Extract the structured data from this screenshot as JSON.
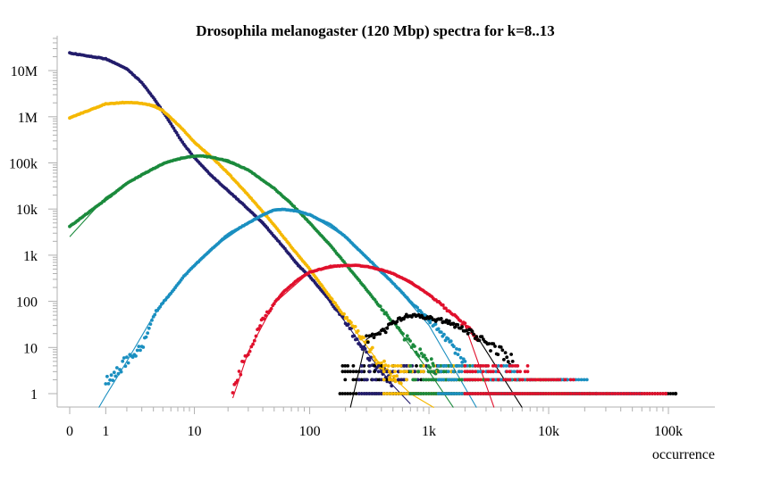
{
  "chart_data": {
    "type": "scatter",
    "title": "Drosophila melanogaster (120 Mbp) spectra for k=8..13",
    "xlabel": "occurrence",
    "ylabel": "",
    "x_scale": "log1p",
    "y_scale": "log1p",
    "xlim": [
      0,
      120000
    ],
    "ylim": [
      0.5,
      60000000
    ],
    "x_ticks": [
      {
        "value": 0,
        "label": "0"
      },
      {
        "value": 1,
        "label": "1"
      },
      {
        "value": 10,
        "label": "10"
      },
      {
        "value": 100,
        "label": "100"
      },
      {
        "value": 1000,
        "label": "1k"
      },
      {
        "value": 10000,
        "label": "10k"
      },
      {
        "value": 100000,
        "label": "100k"
      }
    ],
    "y_ticks": [
      {
        "value": 1,
        "label": "1"
      },
      {
        "value": 10,
        "label": "10"
      },
      {
        "value": 100,
        "label": "100"
      },
      {
        "value": 1000,
        "label": "1k"
      },
      {
        "value": 10000,
        "label": "10k"
      },
      {
        "value": 100000,
        "label": "100k"
      },
      {
        "value": 1000000,
        "label": "1M"
      },
      {
        "value": 10000000,
        "label": "10M"
      }
    ],
    "grid": false,
    "series": [
      {
        "color": "#221c6b",
        "points": [
          [
            0,
            24000000
          ],
          [
            1,
            18000000
          ],
          [
            2,
            11000000
          ],
          [
            3,
            5500000
          ],
          [
            4,
            2600000
          ],
          [
            5,
            1300000
          ],
          [
            6,
            700000
          ],
          [
            7,
            400000
          ],
          [
            8,
            250000
          ],
          [
            10,
            130000
          ],
          [
            14,
            55000
          ],
          [
            20,
            25000
          ],
          [
            30,
            10000
          ],
          [
            40,
            5000
          ],
          [
            60,
            1500
          ],
          [
            80,
            600
          ],
          [
            100,
            350
          ],
          [
            150,
            100
          ],
          [
            200,
            35
          ],
          [
            250,
            15
          ],
          [
            300,
            8
          ],
          [
            400,
            3
          ],
          [
            500,
            2
          ]
        ],
        "fit": [
          [
            0,
            24000000
          ],
          [
            1,
            18000000
          ],
          [
            2,
            11000000
          ],
          [
            3,
            5500000
          ],
          [
            5,
            1300000
          ],
          [
            8,
            250000
          ],
          [
            14,
            55000
          ],
          [
            30,
            10000
          ],
          [
            60,
            1500
          ],
          [
            100,
            350
          ],
          [
            200,
            35
          ],
          [
            300,
            8
          ],
          [
            500,
            1.5
          ],
          [
            700,
            0.6
          ]
        ]
      },
      {
        "color": "#f5b800",
        "points": [
          [
            0,
            950000
          ],
          [
            1,
            1900000
          ],
          [
            2,
            2050000
          ],
          [
            3,
            1950000
          ],
          [
            4,
            1750000
          ],
          [
            5,
            1350000
          ],
          [
            6,
            950000
          ],
          [
            8,
            500000
          ],
          [
            10,
            280000
          ],
          [
            15,
            120000
          ],
          [
            20,
            60000
          ],
          [
            30,
            20000
          ],
          [
            50,
            4500
          ],
          [
            70,
            1500
          ],
          [
            100,
            500
          ],
          [
            150,
            120
          ],
          [
            200,
            45
          ],
          [
            300,
            12
          ],
          [
            400,
            4
          ],
          [
            600,
            2
          ]
        ],
        "fit": [
          [
            0,
            950000
          ],
          [
            1,
            1900000
          ],
          [
            2,
            2000000
          ],
          [
            3,
            1950000
          ],
          [
            5,
            1350000
          ],
          [
            8,
            500000
          ],
          [
            12,
            200000
          ],
          [
            20,
            60000
          ],
          [
            50,
            4500
          ],
          [
            100,
            500
          ],
          [
            200,
            45
          ],
          [
            400,
            4
          ],
          [
            700,
            1
          ],
          [
            1100,
            0.5
          ]
        ]
      },
      {
        "color": "#1b8a3c",
        "points": [
          [
            0,
            4200
          ],
          [
            1,
            16000
          ],
          [
            2,
            36000
          ],
          [
            3,
            55000
          ],
          [
            4,
            75000
          ],
          [
            5,
            95000
          ],
          [
            6,
            110000
          ],
          [
            8,
            130000
          ],
          [
            10,
            140000
          ],
          [
            12,
            140000
          ],
          [
            15,
            130000
          ],
          [
            20,
            110000
          ],
          [
            30,
            70000
          ],
          [
            50,
            28000
          ],
          [
            70,
            13000
          ],
          [
            100,
            5000
          ],
          [
            150,
            1600
          ],
          [
            200,
            650
          ],
          [
            300,
            180
          ],
          [
            500,
            35
          ],
          [
            800,
            8
          ],
          [
            1200,
            3
          ]
        ],
        "fit": [
          [
            0,
            2500
          ],
          [
            1,
            18000
          ],
          [
            2,
            35000
          ],
          [
            5,
            95000
          ],
          [
            10,
            140000
          ],
          [
            15,
            130000
          ],
          [
            30,
            70000
          ],
          [
            50,
            28000
          ],
          [
            100,
            5000
          ],
          [
            200,
            650
          ],
          [
            500,
            35
          ],
          [
            1000,
            3
          ],
          [
            1600,
            0.5
          ]
        ]
      },
      {
        "color": "#1a8fc0",
        "points": [
          [
            1,
            2
          ],
          [
            2,
            5
          ],
          [
            3,
            10
          ],
          [
            4,
            50
          ],
          [
            5,
            95
          ],
          [
            6,
            150
          ],
          [
            8,
            350
          ],
          [
            10,
            600
          ],
          [
            15,
            1500
          ],
          [
            20,
            2800
          ],
          [
            30,
            5000
          ],
          [
            40,
            7500
          ],
          [
            50,
            9500
          ],
          [
            60,
            9800
          ],
          [
            80,
            9000
          ],
          [
            100,
            7500
          ],
          [
            150,
            4500
          ],
          [
            200,
            2500
          ],
          [
            300,
            900
          ],
          [
            500,
            250
          ],
          [
            800,
            70
          ],
          [
            1200,
            25
          ],
          [
            2000,
            5
          ]
        ],
        "fit": [
          [
            0.75,
            0.5
          ],
          [
            1,
            0.9
          ],
          [
            2,
            5
          ],
          [
            4,
            48
          ],
          [
            8,
            350
          ],
          [
            15,
            1500
          ],
          [
            30,
            5000
          ],
          [
            50,
            9500
          ],
          [
            70,
            9500
          ],
          [
            100,
            7500
          ],
          [
            200,
            2500
          ],
          [
            500,
            250
          ],
          [
            1000,
            30
          ],
          [
            2500,
            0.5
          ]
        ]
      },
      {
        "color": "#e0102c",
        "points": [
          [
            22,
            1
          ],
          [
            25,
            3
          ],
          [
            30,
            8
          ],
          [
            35,
            20
          ],
          [
            40,
            40
          ],
          [
            50,
            90
          ],
          [
            60,
            160
          ],
          [
            80,
            300
          ],
          [
            100,
            430
          ],
          [
            150,
            570
          ],
          [
            200,
            600
          ],
          [
            250,
            600
          ],
          [
            300,
            570
          ],
          [
            400,
            480
          ],
          [
            500,
            400
          ],
          [
            700,
            260
          ],
          [
            1000,
            140
          ],
          [
            1500,
            60
          ],
          [
            2000,
            30
          ],
          [
            2500,
            15
          ]
        ],
        "fit": [
          [
            22,
            0.8
          ],
          [
            30,
            8
          ],
          [
            50,
            90
          ],
          [
            100,
            430
          ],
          [
            200,
            600
          ],
          [
            300,
            570
          ],
          [
            500,
            400
          ],
          [
            1000,
            140
          ],
          [
            2000,
            30
          ],
          [
            3500,
            0.5
          ]
        ]
      },
      {
        "color": "#000000",
        "points": [
          [
            300,
            15
          ],
          [
            400,
            20
          ],
          [
            500,
            35
          ],
          [
            600,
            45
          ],
          [
            700,
            50
          ],
          [
            800,
            50
          ],
          [
            1000,
            45
          ],
          [
            1300,
            38
          ],
          [
            1600,
            30
          ],
          [
            2000,
            25
          ],
          [
            2500,
            18
          ],
          [
            3000,
            12
          ],
          [
            4000,
            8
          ],
          [
            5000,
            5
          ]
        ],
        "fit": [
          [
            220,
            0.5
          ],
          [
            300,
            15
          ],
          [
            600,
            45
          ],
          [
            800,
            50
          ],
          [
            1300,
            38
          ],
          [
            2500,
            18
          ],
          [
            6000,
            0.5
          ]
        ]
      }
    ],
    "singletons": [
      {
        "color": "#000000",
        "x": [
          180,
          220,
          260,
          300,
          350,
          420,
          500,
          620,
          750,
          900,
          1100,
          1400,
          1800,
          2300,
          3000,
          3800,
          4800,
          6000,
          7500,
          9500,
          12000,
          15000,
          19000,
          24000,
          30000,
          36000,
          45000,
          52000,
          70000,
          115000
        ]
      },
      {
        "color": "#221c6b",
        "x": [
          260,
          320,
          400,
          500,
          650,
          900,
          1300,
          2000,
          3000,
          4500,
          7000,
          9000,
          14000,
          18000,
          25000
        ]
      },
      {
        "color": "#f5b800",
        "x": [
          420,
          520,
          650,
          900,
          1300,
          1800,
          2600,
          3800,
          5500,
          7500,
          12000,
          17000,
          24000,
          31000
        ]
      },
      {
        "color": "#1b8a3c",
        "x": [
          700,
          900,
          1200,
          1700,
          2300,
          3200,
          4500,
          6000,
          8000,
          11000,
          15000,
          22000
        ]
      },
      {
        "color": "#1a8fc0",
        "x": [
          1200,
          1600,
          2200,
          3000,
          4200,
          6000,
          8500,
          11000,
          16000,
          22000,
          38000,
          58000
        ]
      },
      {
        "color": "#e0102c",
        "x": [
          2000,
          2700,
          3600,
          5000,
          7000,
          9500,
          13000,
          18000,
          26000,
          95000
        ]
      }
    ]
  }
}
